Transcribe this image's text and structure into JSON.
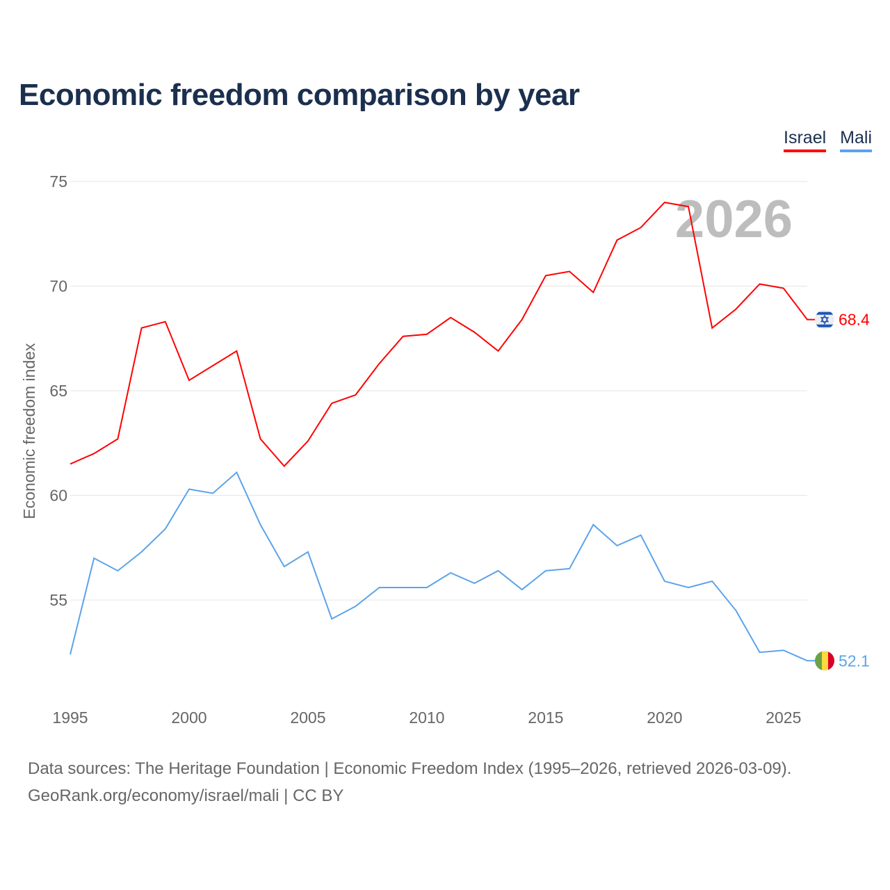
{
  "title": "Economic freedom comparison by year",
  "footer": {
    "line1": "Data sources: The Heritage Foundation | Economic Freedom Index (1995–2026, retrieved 2026-03-09).",
    "line2": "GeoRank.org/economy/israel/mali | CC BY"
  },
  "chart_data": {
    "type": "line",
    "title": "Economic freedom comparison by year",
    "ylabel": "Economic freedom index",
    "xlabel": "",
    "watermark_year": "2026",
    "ylim": [
      50,
      75
    ],
    "xlim": [
      1995,
      2026
    ],
    "yticks": [
      "55",
      "60",
      "65",
      "70",
      "75"
    ],
    "xticks": [
      "1995",
      "2000",
      "2005",
      "2010",
      "2015",
      "2020",
      "2025"
    ],
    "grid": true,
    "legend_position": "top-right",
    "x": [
      1995,
      1996,
      1997,
      1998,
      1999,
      2000,
      2001,
      2002,
      2003,
      2004,
      2005,
      2006,
      2007,
      2008,
      2009,
      2010,
      2011,
      2012,
      2013,
      2014,
      2015,
      2016,
      2017,
      2018,
      2019,
      2020,
      2021,
      2022,
      2023,
      2024,
      2025,
      2026
    ],
    "series": [
      {
        "name": "Israel",
        "color": "#ff0000",
        "end_label": "68.4",
        "flag": "israel-flag",
        "values": [
          61.5,
          62.0,
          62.7,
          68.0,
          68.3,
          65.5,
          66.2,
          66.9,
          62.7,
          61.4,
          62.6,
          64.4,
          64.8,
          66.3,
          67.6,
          67.7,
          68.5,
          67.8,
          66.9,
          68.4,
          70.5,
          70.7,
          69.7,
          72.2,
          72.8,
          74.0,
          73.8,
          68.0,
          68.9,
          70.1,
          69.9,
          68.4
        ]
      },
      {
        "name": "Mali",
        "color": "#5ba3ea",
        "end_label": "52.1",
        "flag": "mali-flag",
        "values": [
          52.4,
          57.0,
          56.4,
          57.3,
          58.4,
          60.3,
          60.1,
          61.1,
          58.6,
          56.6,
          57.3,
          54.1,
          54.7,
          55.6,
          55.6,
          55.6,
          56.3,
          55.8,
          56.4,
          55.5,
          56.4,
          56.5,
          58.6,
          57.6,
          58.1,
          55.9,
          55.6,
          55.9,
          54.5,
          52.5,
          52.6,
          52.1
        ]
      }
    ]
  }
}
